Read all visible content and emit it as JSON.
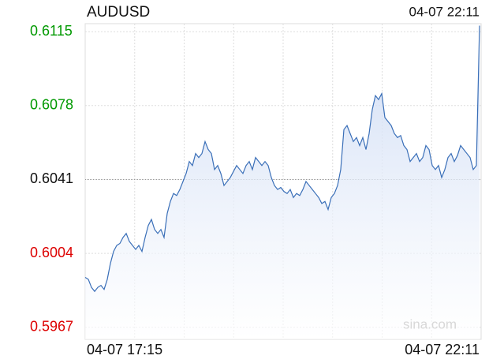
{
  "chart_data": {
    "type": "line",
    "title": "AUDUSD",
    "timestamp": "04-07 22:11",
    "watermark": "sina.com",
    "x_labels": [
      "04-07 17:15",
      "04-07 22:11"
    ],
    "series": [
      {
        "name": "AUDUSD",
        "color": "#3a6fb8",
        "values": [
          0.5992,
          0.5991,
          0.5987,
          0.5985,
          0.5987,
          0.5988,
          0.5986,
          0.5991,
          0.5999,
          0.6005,
          0.6008,
          0.6009,
          0.6012,
          0.6014,
          0.601,
          0.6008,
          0.6006,
          0.6008,
          0.6005,
          0.6012,
          0.6018,
          0.6021,
          0.6016,
          0.6014,
          0.6016,
          0.6012,
          0.6024,
          0.603,
          0.6034,
          0.6033,
          0.6036,
          0.604,
          0.6044,
          0.605,
          0.6048,
          0.6054,
          0.6052,
          0.6054,
          0.606,
          0.6056,
          0.6054,
          0.6046,
          0.6048,
          0.6044,
          0.6038,
          0.604,
          0.6042,
          0.6045,
          0.6048,
          0.6046,
          0.6044,
          0.6048,
          0.605,
          0.6046,
          0.6052,
          0.605,
          0.6048,
          0.605,
          0.6048,
          0.6042,
          0.6038,
          0.6036,
          0.6037,
          0.6035,
          0.6034,
          0.6036,
          0.6032,
          0.6034,
          0.6033,
          0.6036,
          0.604,
          0.6038,
          0.6036,
          0.6034,
          0.6032,
          0.6029,
          0.603,
          0.6026,
          0.6032,
          0.6034,
          0.6038,
          0.6046,
          0.6066,
          0.6068,
          0.6064,
          0.606,
          0.6062,
          0.6058,
          0.6062,
          0.6056,
          0.6064,
          0.6076,
          0.6083,
          0.6081,
          0.6084,
          0.6072,
          0.607,
          0.6068,
          0.6064,
          0.6062,
          0.6063,
          0.6058,
          0.6056,
          0.605,
          0.6052,
          0.6054,
          0.605,
          0.6052,
          0.6058,
          0.6056,
          0.6048,
          0.6046,
          0.6048,
          0.6042,
          0.6046,
          0.6052,
          0.6054,
          0.605,
          0.6053,
          0.6058,
          0.6056,
          0.6054,
          0.6052,
          0.6046,
          0.6048,
          0.6118
        ]
      }
    ],
    "ylim": [
      0.5961,
      0.6119
    ],
    "yticks": [
      0.5967,
      0.6004,
      0.6041,
      0.6078,
      0.6115
    ],
    "prev_close": 0.6041,
    "up_color": "#009900",
    "down_color": "#dd0000",
    "flat_color": "#111111",
    "x_grid_divisions": 8,
    "grid": true
  }
}
